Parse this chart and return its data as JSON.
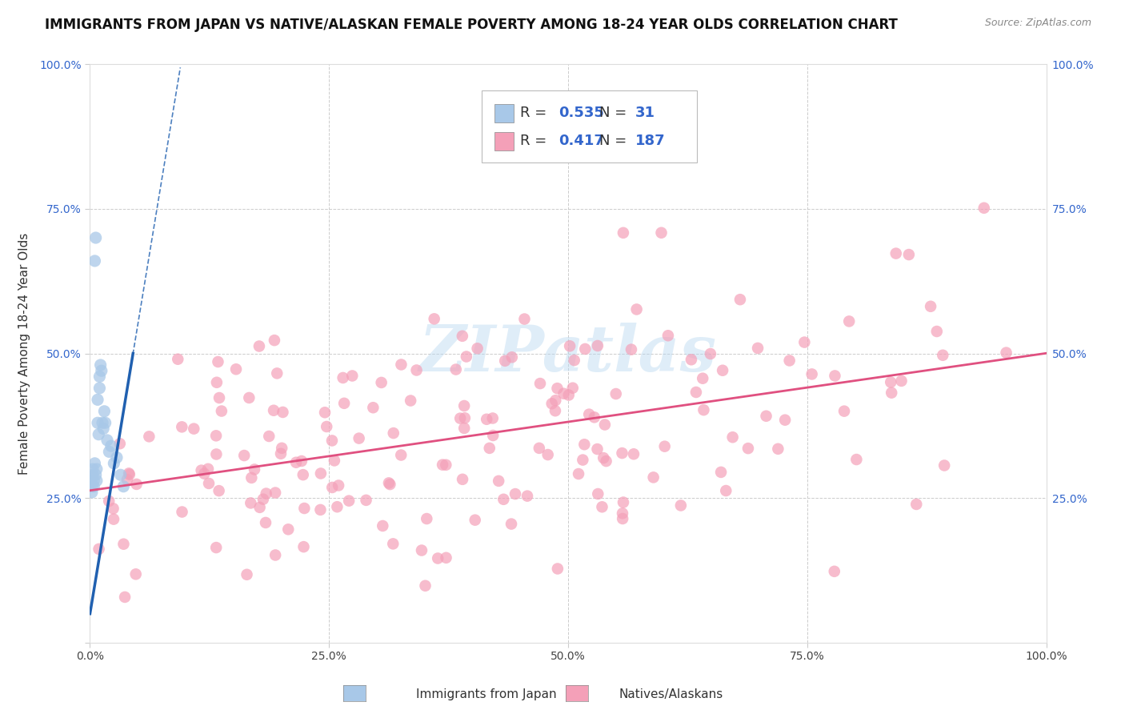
{
  "title": "IMMIGRANTS FROM JAPAN VS NATIVE/ALASKAN FEMALE POVERTY AMONG 18-24 YEAR OLDS CORRELATION CHART",
  "source": "Source: ZipAtlas.com",
  "ylabel": "Female Poverty Among 18-24 Year Olds",
  "xlim": [
    0.0,
    1.0
  ],
  "ylim": [
    0.0,
    1.0
  ],
  "blue_R": 0.535,
  "blue_N": 31,
  "pink_R": 0.417,
  "pink_N": 187,
  "blue_color": "#a8c8e8",
  "pink_color": "#f4a0b8",
  "blue_line_color": "#2060b0",
  "pink_line_color": "#e05080",
  "legend_text_color": "#3366cc",
  "watermark": "ZIPatlas",
  "background_color": "#ffffff",
  "grid_color": "#cccccc",
  "title_fontsize": 12,
  "axis_label_fontsize": 11,
  "tick_fontsize": 10,
  "legend_fontsize": 13
}
